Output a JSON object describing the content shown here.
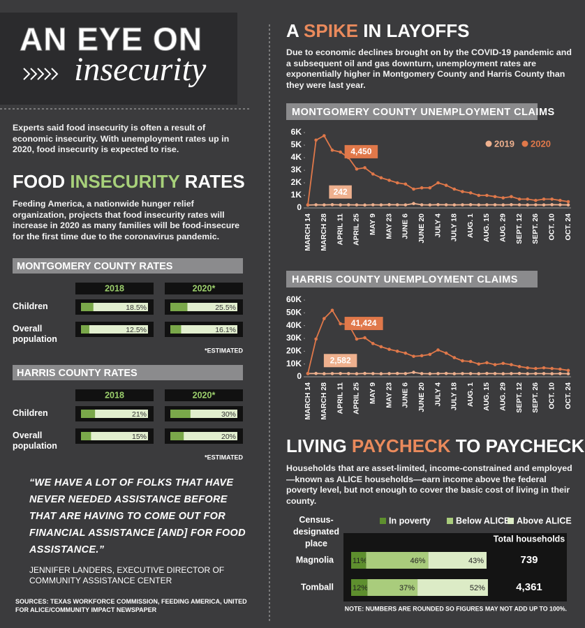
{
  "header": {
    "title": "AN EYE ON",
    "subtitle": "insecurity"
  },
  "intro": "Experts said food insecurity is often a result of economic insecurity. With unemployment rates up in 2020, food insecurity is expected to rise.",
  "food": {
    "title_parts": [
      "FOOD ",
      "INSECURITY",
      " RATES"
    ],
    "text": "Feeding America, a nationwide hunger relief organization, projects that food insecurity rates will increase in 2020 as many families will be food-insecure for the first time due to the coronavirus pandemic."
  },
  "quote": {
    "text": "“WE HAVE A LOT OF FOLKS THAT HAVE NEVER NEEDED ASSISTANCE BEFORE THAT ARE HAVING TO COME OUT FOR FINANCIAL ASSISTANCE [AND] FOR FOOD ASSISTANCE.”",
    "attribution": "JENNIFER LANDERS, EXECUTIVE DIRECTOR OF COMMUNITY ASSISTANCE CENTER"
  },
  "sources": "SOURCES: TEXAS WORKFORCE COMMISSION, FEEDING AMERICA, UNITED FOR ALICE/COMMUNITY IMPACT NEWSPAPER",
  "spike": {
    "title_parts": [
      "A ",
      "SPIKE",
      " IN LAYOFFS"
    ],
    "text": "Due to economic declines brought on by the COVID-19 pandemic and a subsequent oil and gas downturn, unemployment rates are exponentially higher in Montgomery County and Harris County than they were last year."
  },
  "living": {
    "title_parts": [
      "LIVING ",
      "PAYCHECK",
      " TO PAYCHECK"
    ],
    "text": "Households that are asset-limited, income-constrained and employed—known as ALICE households—earn income above the federal poverty level, but not enough to cover the basic cost of living in their county."
  },
  "chart_data": [
    {
      "type": "bar",
      "title": "MONTGOMERY COUNTY RATES",
      "categories": [
        "Children",
        "Overall population"
      ],
      "series": [
        {
          "name": "2018",
          "color": "#7aa84a",
          "values": [
            18.5,
            12.5
          ],
          "value_labels": [
            "18.5%",
            "12.5%"
          ]
        },
        {
          "name": "2020*",
          "color": "#7aa84a",
          "values": [
            25.5,
            16.1
          ],
          "value_labels": [
            "25.5%",
            "16.1%"
          ]
        }
      ],
      "xlim": [
        0,
        100
      ],
      "note": "*ESTIMATED"
    },
    {
      "type": "bar",
      "title": "HARRIS COUNTY RATES",
      "categories": [
        "Children",
        "Overall population"
      ],
      "series": [
        {
          "name": "2018",
          "color": "#7aa84a",
          "values": [
            21,
            15
          ],
          "value_labels": [
            "21%",
            "15%"
          ]
        },
        {
          "name": "2020*",
          "color": "#7aa84a",
          "values": [
            30,
            20
          ],
          "value_labels": [
            "30%",
            "20%"
          ]
        }
      ],
      "xlim": [
        0,
        100
      ],
      "note": "*ESTIMATED"
    },
    {
      "type": "line",
      "title": "MONTGOMERY COUNTY UNEMPLOYMENT CLAIMS",
      "categories": [
        "MARCH 14",
        null,
        "MARCH 28",
        null,
        "APRIL 11",
        null,
        "APRIL 25",
        null,
        "MAY 9",
        null,
        "MAY 23",
        null,
        "JUNE 6",
        null,
        "JUNE 20",
        null,
        "JULY 4",
        null,
        "JULY 18",
        null,
        "AUG. 1",
        null,
        "AUG. 15",
        null,
        "AUG. 29",
        null,
        "SEPT. 12",
        null,
        "SEPT. 26",
        null,
        "OCT. 10",
        null,
        "OCT. 24"
      ],
      "series": [
        {
          "name": "2019",
          "color": "#eeb08e",
          "values": [
            230,
            250,
            240,
            260,
            242,
            250,
            240,
            230,
            250,
            240,
            260,
            250,
            240,
            350,
            250,
            240,
            260,
            250,
            240,
            250,
            260,
            240,
            250,
            250,
            240,
            260,
            250,
            240,
            250,
            240,
            260,
            250,
            240
          ],
          "value_labels": [
            null,
            null,
            null,
            null,
            "242",
            null,
            null,
            null,
            null,
            null,
            null,
            null,
            null,
            null,
            null,
            null,
            null,
            null,
            null,
            null,
            null,
            null,
            null,
            null,
            null,
            null,
            null,
            null,
            null,
            null,
            null,
            null,
            null
          ]
        },
        {
          "name": "2020",
          "color": "#e0784a",
          "values": [
            250,
            5400,
            5750,
            4600,
            4450,
            4000,
            3100,
            3200,
            2700,
            2400,
            2200,
            2000,
            1900,
            1500,
            1600,
            1600,
            2000,
            1800,
            1500,
            1300,
            1200,
            1000,
            1000,
            900,
            800,
            900,
            700,
            700,
            600,
            700,
            700,
            600,
            500
          ],
          "value_labels": [
            null,
            null,
            null,
            null,
            "4,450",
            null,
            null,
            null,
            null,
            null,
            null,
            null,
            null,
            null,
            null,
            null,
            null,
            null,
            null,
            null,
            null,
            null,
            null,
            null,
            null,
            null,
            null,
            null,
            null,
            null,
            null,
            null,
            null
          ]
        }
      ],
      "ylim": [
        0,
        6000
      ],
      "yticks": [
        0,
        {
          "value": 1000,
          "label": "1K"
        },
        {
          "value": 2000,
          "label": "2K"
        },
        {
          "value": 3000,
          "label": "3K"
        },
        {
          "value": 4000,
          "label": "4K"
        },
        {
          "value": 5000,
          "label": "5K"
        },
        {
          "value": 6000,
          "label": "6K"
        }
      ],
      "legend": "upper right"
    },
    {
      "type": "line",
      "title": "HARRIS COUNTY UNEMPLOYMENT CLAIMS",
      "categories": [
        "MARCH 14",
        null,
        "MARCH 28",
        null,
        "APRIL 11",
        null,
        "APRIL 25",
        null,
        "MAY 9",
        null,
        "MAY 23",
        null,
        "JUNE 6",
        null,
        "JUNE 20",
        null,
        "JULY 4",
        null,
        "JULY 18",
        null,
        "AUG. 1",
        null,
        "AUG. 15",
        null,
        "AUG. 29",
        null,
        "SEPT. 12",
        null,
        "SEPT. 26",
        null,
        "OCT. 10",
        null,
        "OCT. 24"
      ],
      "series": [
        {
          "name": "2019",
          "color": "#eeb08e",
          "values": [
            2500,
            2600,
            2400,
            2500,
            2582,
            2500,
            2400,
            2600,
            2500,
            2400,
            2500,
            2600,
            2500,
            3500,
            2500,
            2400,
            2500,
            2600,
            2400,
            2500,
            2500,
            2400,
            2600,
            2500,
            2400,
            2500,
            2600,
            2400,
            2500,
            2500,
            2400,
            2500,
            2400
          ],
          "value_labels": [
            null,
            null,
            null,
            null,
            "2,582",
            null,
            null,
            null,
            null,
            null,
            null,
            null,
            null,
            null,
            null,
            null,
            null,
            null,
            null,
            null,
            null,
            null,
            null,
            null,
            null,
            null,
            null,
            null,
            null,
            null,
            null,
            null,
            null
          ]
        },
        {
          "name": "2020",
          "color": "#e0784a",
          "values": [
            2500,
            29500,
            45500,
            52000,
            41424,
            41000,
            29500,
            30500,
            26000,
            23500,
            21500,
            20000,
            18500,
            16000,
            16500,
            17500,
            21000,
            18500,
            15000,
            12500,
            12000,
            10000,
            11000,
            9500,
            10500,
            9500,
            8000,
            7000,
            6500,
            7000,
            6500,
            6000,
            5000
          ],
          "value_labels": [
            null,
            null,
            null,
            null,
            "41,424",
            null,
            null,
            null,
            null,
            null,
            null,
            null,
            null,
            null,
            null,
            null,
            null,
            null,
            null,
            null,
            null,
            null,
            null,
            null,
            null,
            null,
            null,
            null,
            null,
            null,
            null,
            null,
            null
          ]
        }
      ],
      "ylim": [
        0,
        60000
      ],
      "yticks": [
        0,
        {
          "value": 10000,
          "label": "10K"
        },
        {
          "value": 20000,
          "label": "20K"
        },
        {
          "value": 30000,
          "label": "30K"
        },
        {
          "value": 40000,
          "label": "40K"
        },
        {
          "value": 50000,
          "label": "50K"
        },
        {
          "value": 60000,
          "label": "60K"
        }
      ]
    },
    {
      "type": "bar",
      "stacked": true,
      "category_title": "Census-designated place",
      "categories": [
        "Magnolia",
        "Tomball"
      ],
      "series": [
        {
          "name": "In poverty",
          "color": "#5e8f2e",
          "values": [
            11,
            12
          ],
          "value_labels": [
            "11%",
            "12%"
          ]
        },
        {
          "name": "Below ALICE",
          "color": "#a9cc7c",
          "values": [
            46,
            37
          ],
          "value_labels": [
            "46%",
            "37%"
          ]
        },
        {
          "name": "Above ALICE",
          "color": "#dcebc6",
          "values": [
            43,
            52
          ],
          "value_labels": [
            "43%",
            "52%"
          ]
        }
      ],
      "xlim": [
        0,
        100
      ],
      "totals_title": "Total households",
      "totals": [
        {
          "value": 739,
          "label": "739"
        },
        {
          "value": 4361,
          "label": "4,361"
        }
      ],
      "note": "NOTE: NUMBERS ARE ROUNDED SO FIGURES MAY NOT ADD UP TO 100%."
    }
  ]
}
